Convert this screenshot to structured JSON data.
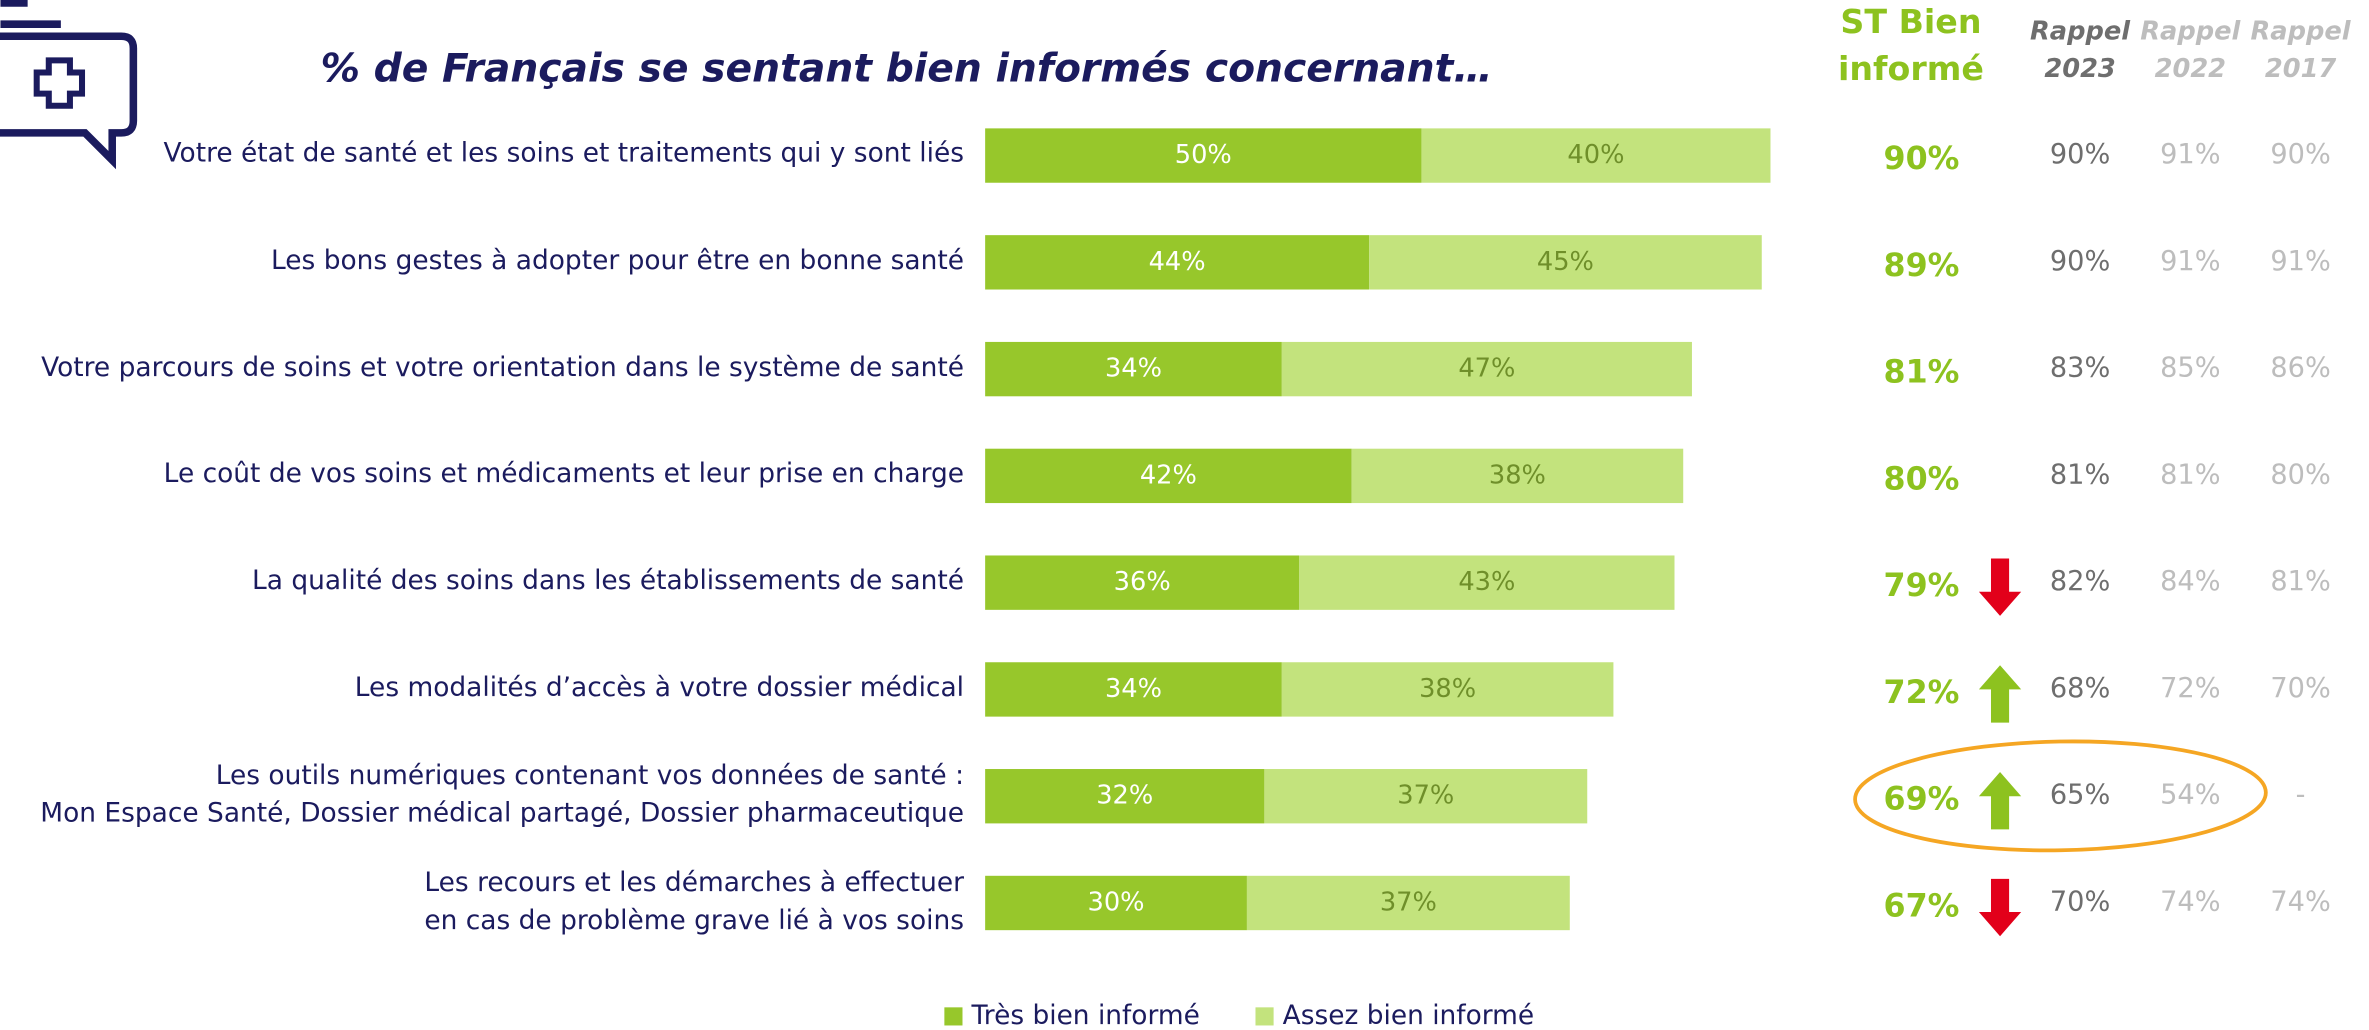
{
  "chart_data": {
    "type": "bar",
    "orientation": "horizontal",
    "stacked": true,
    "title": "% de Français se sentant bien informés concernant…",
    "categories": [
      "Votre état de santé et les soins et traitements qui y sont liés",
      "Les bons gestes à adopter pour être en bonne santé",
      "Votre parcours de soins et votre orientation dans le système de santé",
      "Le coût de vos soins et médicaments et leur prise en charge",
      "La qualité des soins dans les établissements de santé",
      "Les modalités d’accès à votre dossier médical",
      "Les outils numériques contenant vos données de santé :\nMon Espace Santé, Dossier médical partagé, Dossier pharmaceutique",
      "Les recours et les démarches à effectuer\nen cas de problème grave lié à vos soins"
    ],
    "series": [
      {
        "name": "Très bien informé",
        "color": "#97c72b",
        "label_color": "#ffffff",
        "values": [
          50,
          44,
          34,
          42,
          36,
          34,
          32,
          30
        ],
        "value_labels": [
          "50%",
          "44%",
          "34%",
          "42%",
          "36%",
          "34%",
          "32%",
          "30%"
        ]
      },
      {
        "name": "Assez bien informé",
        "color": "#c3e37d",
        "label_color": "#6f8f2a",
        "values": [
          40,
          45,
          47,
          38,
          43,
          38,
          37,
          37
        ],
        "value_labels": [
          "40%",
          "45%",
          "47%",
          "38%",
          "43%",
          "38%",
          "37%",
          "37%"
        ]
      }
    ],
    "summary": {
      "title": "ST Bien\ninformé",
      "color": "#8dc21f",
      "values": [
        90,
        89,
        81,
        80,
        79,
        72,
        69,
        67
      ],
      "value_labels": [
        "90%",
        "89%",
        "81%",
        "80%",
        "79%",
        "72%",
        "69%",
        "67%"
      ]
    },
    "trend": [
      null,
      null,
      null,
      null,
      "down",
      "up",
      "up",
      "down"
    ],
    "trend_colors": {
      "up": "#8dc21f",
      "down": "#e2001a"
    },
    "recall": [
      {
        "title": "Rappel\n2023",
        "color": "#6e6e6e",
        "values": [
          90,
          90,
          83,
          81,
          82,
          68,
          65,
          70
        ],
        "value_labels": [
          "90%",
          "90%",
          "83%",
          "81%",
          "82%",
          "68%",
          "65%",
          "70%"
        ]
      },
      {
        "title": "Rappel\n2022",
        "color": "#bdbdbd",
        "values": [
          91,
          91,
          85,
          81,
          84,
          72,
          54,
          74
        ],
        "value_labels": [
          "91%",
          "91%",
          "85%",
          "81%",
          "84%",
          "72%",
          "54%",
          "74%"
        ]
      },
      {
        "title": "Rappel\n2017",
        "color": "#bdbdbd",
        "values": [
          90,
          91,
          86,
          80,
          81,
          70,
          null,
          74
        ],
        "value_labels": [
          "90%",
          "91%",
          "86%",
          "80%",
          "81%",
          "70%",
          "-",
          "74%"
        ]
      }
    ],
    "legend": "bottom"
  }
}
